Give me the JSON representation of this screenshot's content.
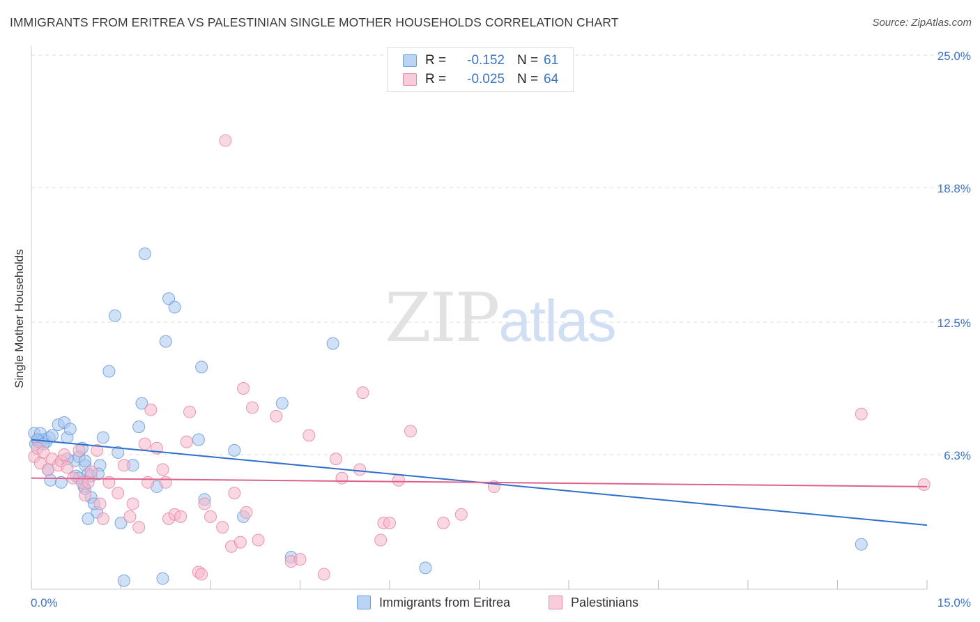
{
  "title": "IMMIGRANTS FROM ERITREA VS PALESTINIAN SINGLE MOTHER HOUSEHOLDS CORRELATION CHART",
  "source": "Source: ZipAtlas.com",
  "watermark": {
    "zip": "ZIP",
    "atlas": "atlas"
  },
  "colors": {
    "blue_fill": "#a9c7ee",
    "blue_stroke": "#6f9fd9",
    "blue_line": "#2f6fcc",
    "pink_fill": "#f5b8cb",
    "pink_stroke": "#e98aa8",
    "pink_line": "#e0608c",
    "tick_label": "#3b73c4",
    "grid": "#dddddd"
  },
  "stats": {
    "rows": [
      {
        "r_label": "R =",
        "r_value": "-0.152",
        "n_label": "N =",
        "n_value": "61"
      },
      {
        "r_label": "R =",
        "r_value": "-0.025",
        "n_label": "N =",
        "n_value": "64"
      }
    ]
  },
  "legend": {
    "items": [
      {
        "label": "Immigrants from Eritrea"
      },
      {
        "label": "Palestinians"
      }
    ]
  },
  "chart_data": {
    "type": "scatter",
    "title": "IMMIGRANTS FROM ERITREA VS PALESTINIAN SINGLE MOTHER HOUSEHOLDS CORRELATION CHART",
    "xlabel": "",
    "ylabel": "Single Mother Households",
    "xlim": [
      0,
      15
    ],
    "ylim": [
      0,
      25
    ],
    "x_tick_labels": [
      "0.0%",
      "15.0%"
    ],
    "y_ticks": [
      6.3,
      12.5,
      18.8,
      25.0
    ],
    "y_tick_labels": [
      "6.3%",
      "12.5%",
      "18.8%",
      "25.0%"
    ],
    "grid": true,
    "legend_position": "bottom",
    "series": [
      {
        "name": "Immigrants from Eritrea",
        "trend": [
          [
            0.0,
            7.0
          ],
          [
            15.0,
            3.0
          ]
        ],
        "points": [
          [
            0.05,
            7.3
          ],
          [
            0.07,
            6.8
          ],
          [
            0.1,
            7.0
          ],
          [
            0.15,
            7.3
          ],
          [
            0.12,
            6.9
          ],
          [
            0.2,
            7.0
          ],
          [
            0.25,
            6.9
          ],
          [
            0.3,
            7.1
          ],
          [
            0.35,
            7.2
          ],
          [
            0.45,
            7.7
          ],
          [
            0.55,
            7.8
          ],
          [
            0.6,
            7.1
          ],
          [
            0.65,
            7.5
          ],
          [
            0.72,
            6.0
          ],
          [
            0.8,
            6.2
          ],
          [
            0.85,
            6.6
          ],
          [
            0.9,
            5.8
          ],
          [
            0.95,
            5.4
          ],
          [
            1.0,
            5.3
          ],
          [
            0.28,
            5.6
          ],
          [
            0.32,
            5.1
          ],
          [
            0.5,
            5.0
          ],
          [
            0.75,
            5.3
          ],
          [
            0.88,
            4.8
          ],
          [
            0.9,
            4.7
          ],
          [
            1.1,
            3.6
          ],
          [
            0.95,
            3.3
          ],
          [
            1.0,
            4.3
          ],
          [
            1.05,
            4.0
          ],
          [
            1.15,
            5.8
          ],
          [
            1.2,
            7.1
          ],
          [
            1.3,
            10.2
          ],
          [
            1.4,
            12.8
          ],
          [
            1.45,
            6.4
          ],
          [
            1.5,
            3.1
          ],
          [
            1.55,
            0.4
          ],
          [
            1.7,
            5.8
          ],
          [
            1.8,
            7.6
          ],
          [
            1.85,
            8.7
          ],
          [
            1.9,
            15.7
          ],
          [
            2.1,
            4.8
          ],
          [
            2.2,
            0.5
          ],
          [
            2.25,
            11.6
          ],
          [
            2.3,
            13.6
          ],
          [
            2.4,
            13.2
          ],
          [
            2.8,
            7.0
          ],
          [
            2.85,
            10.4
          ],
          [
            2.9,
            4.2
          ],
          [
            3.4,
            6.5
          ],
          [
            3.55,
            3.4
          ],
          [
            4.2,
            8.7
          ],
          [
            4.35,
            1.5
          ],
          [
            5.05,
            11.5
          ],
          [
            6.6,
            1.0
          ],
          [
            13.9,
            2.1
          ],
          [
            0.1,
            7.0
          ],
          [
            0.9,
            6.0
          ],
          [
            0.2,
            6.8
          ],
          [
            0.6,
            6.1
          ],
          [
            0.8,
            5.2
          ],
          [
            1.12,
            5.4
          ]
        ]
      },
      {
        "name": "Palestinians",
        "trend": [
          [
            0.0,
            5.2
          ],
          [
            15.0,
            4.8
          ]
        ],
        "points": [
          [
            0.05,
            6.2
          ],
          [
            0.1,
            6.6
          ],
          [
            0.15,
            5.9
          ],
          [
            0.2,
            6.4
          ],
          [
            0.28,
            5.6
          ],
          [
            0.35,
            6.1
          ],
          [
            0.45,
            5.8
          ],
          [
            0.5,
            6.0
          ],
          [
            0.55,
            6.3
          ],
          [
            0.6,
            5.7
          ],
          [
            0.7,
            5.2
          ],
          [
            0.8,
            6.5
          ],
          [
            0.85,
            5.0
          ],
          [
            0.9,
            4.4
          ],
          [
            0.95,
            5.0
          ],
          [
            1.0,
            5.5
          ],
          [
            1.1,
            6.5
          ],
          [
            1.15,
            4.0
          ],
          [
            1.2,
            3.3
          ],
          [
            1.3,
            5.0
          ],
          [
            1.45,
            4.5
          ],
          [
            1.55,
            5.8
          ],
          [
            1.65,
            3.4
          ],
          [
            1.7,
            4.0
          ],
          [
            1.8,
            2.9
          ],
          [
            1.9,
            6.8
          ],
          [
            1.95,
            5.0
          ],
          [
            2.0,
            8.4
          ],
          [
            2.1,
            6.6
          ],
          [
            2.2,
            5.6
          ],
          [
            2.25,
            5.0
          ],
          [
            2.3,
            3.3
          ],
          [
            2.4,
            3.5
          ],
          [
            2.5,
            3.4
          ],
          [
            2.6,
            6.9
          ],
          [
            2.65,
            8.3
          ],
          [
            2.8,
            0.8
          ],
          [
            2.85,
            0.7
          ],
          [
            2.9,
            4.0
          ],
          [
            3.0,
            3.4
          ],
          [
            3.2,
            2.9
          ],
          [
            3.25,
            21.0
          ],
          [
            3.35,
            2.0
          ],
          [
            3.4,
            4.5
          ],
          [
            3.5,
            2.2
          ],
          [
            3.55,
            9.4
          ],
          [
            3.6,
            3.6
          ],
          [
            3.7,
            8.5
          ],
          [
            3.8,
            2.3
          ],
          [
            4.1,
            8.1
          ],
          [
            4.35,
            1.3
          ],
          [
            4.5,
            1.4
          ],
          [
            4.65,
            7.2
          ],
          [
            4.9,
            0.7
          ],
          [
            5.1,
            6.1
          ],
          [
            5.2,
            5.2
          ],
          [
            5.5,
            5.6
          ],
          [
            5.55,
            9.2
          ],
          [
            5.85,
            2.3
          ],
          [
            5.9,
            3.1
          ],
          [
            6.0,
            3.1
          ],
          [
            6.15,
            5.1
          ],
          [
            6.35,
            7.4
          ],
          [
            6.9,
            3.1
          ]
        ]
      }
    ]
  },
  "extra_pink_points": [
    [
      7.2,
      3.5
    ],
    [
      7.75,
      4.8
    ],
    [
      13.9,
      8.2
    ],
    [
      14.95,
      4.9
    ]
  ]
}
